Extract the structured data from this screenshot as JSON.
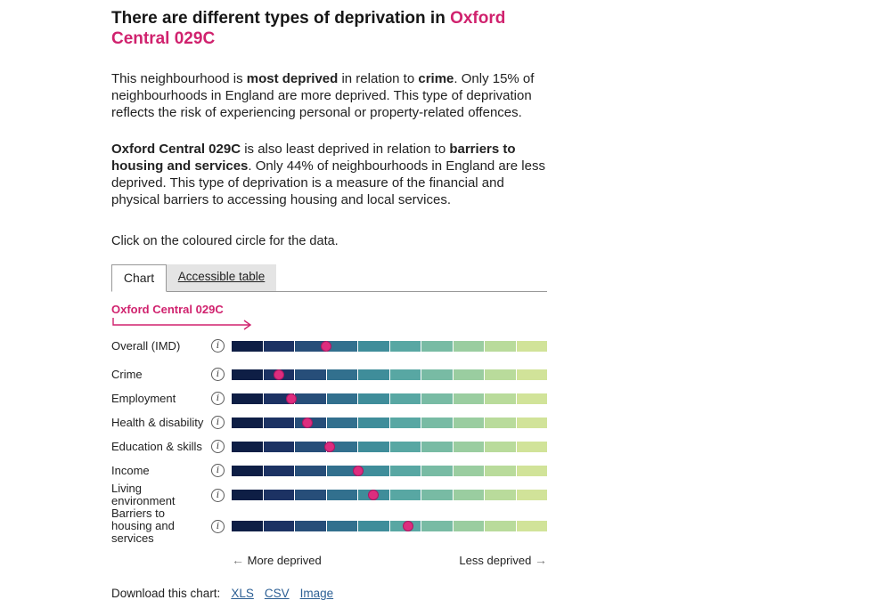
{
  "header": {
    "title_prefix": "There are different types of deprivation in ",
    "title_area": "Oxford Central 029C"
  },
  "intro": {
    "p1": {
      "r1": "This neighbourhood is ",
      "r2": "most deprived",
      "r3": " in relation to ",
      "r4": "crime",
      "r5": ". Only 15% of neighbourhoods in England are more deprived. This type of deprivation reflects the risk of experiencing personal or property-related offences."
    },
    "p2": {
      "r1": "Oxford Central 029C",
      "r2": " is also least deprived in relation to ",
      "r3": "barriers to housing and services",
      "r4": ". Only 44% of neighbourhoods in England are less deprived. This type of deprivation is a measure of the financial and physical barriers to accessing housing and local services."
    },
    "p3": "Click on the coloured circle for the data."
  },
  "tabs": {
    "chart": "Chart",
    "table": "Accessible table"
  },
  "icons": {
    "info": "i",
    "arrow_left": "←",
    "arrow_right": "→"
  },
  "chart_data": {
    "type": "dot-strip",
    "title": "Oxford Central 029C",
    "categories": [
      "Overall (IMD)",
      "Crime",
      "Employment",
      "Health & disability",
      "Education & skills",
      "Income",
      "Living environment",
      "Barriers to housing and services"
    ],
    "values": [
      30,
      15,
      19,
      24,
      31,
      40,
      45,
      56
    ],
    "value_meaning": "percentile of deprivation, 0 = most deprived, 100 = least deprived",
    "xlim": [
      0,
      100
    ],
    "segments": 10,
    "segment_colors": [
      "#0e1e45",
      "#1c3263",
      "#274e79",
      "#32708e",
      "#3f8d9a",
      "#58a7a3",
      "#78bba4",
      "#9acda0",
      "#b9db9b",
      "#d1e399"
    ],
    "marker_color": "#dd2d7e",
    "marker_border_color": "#ac1762",
    "axis_left_label": "More deprived",
    "axis_right_label": "Less deprived"
  },
  "download": {
    "label": "Download this chart:",
    "links": [
      "XLS",
      "CSV",
      "Image"
    ]
  },
  "colors": {
    "accent_pink": "#d0226e",
    "link_blue": "#2c5f94",
    "text": "#222222"
  }
}
